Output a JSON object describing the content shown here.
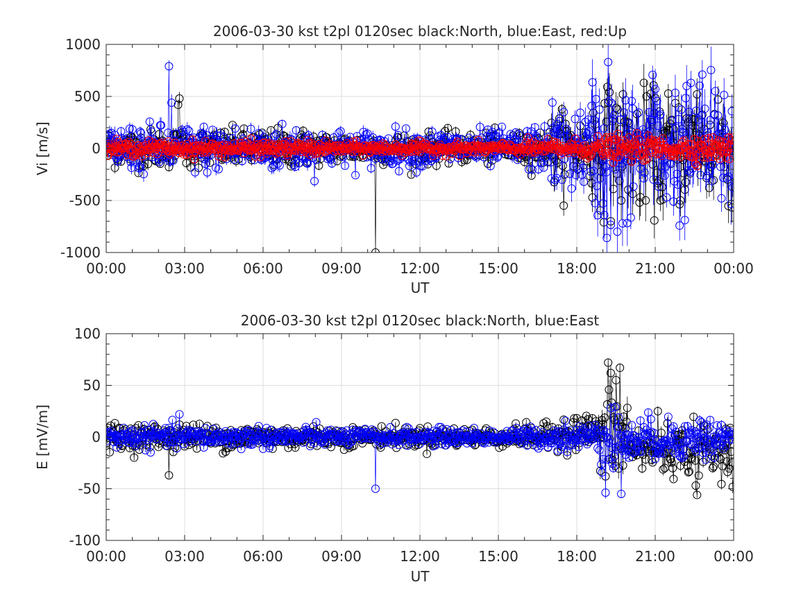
{
  "chart_data": [
    {
      "type": "scatter",
      "title": "2006-03-30 kst t2pl 0120sec black:North, blue:East, red:Up",
      "xlabel": "UT",
      "ylabel": "Vi [m/s]",
      "xlim_hours": [
        0,
        24
      ],
      "ylim": [
        -1000,
        1000
      ],
      "xticks": [
        "00:00",
        "03:00",
        "06:00",
        "09:00",
        "12:00",
        "15:00",
        "18:00",
        "21:00",
        "00:00"
      ],
      "yticks": [
        "-1000",
        "-500",
        "0",
        "500",
        "1000"
      ],
      "grid": true,
      "marker": "circle with error bars",
      "series": [
        {
          "name": "North",
          "color": "#000000",
          "approx_values": {
            "quiet_range": [
              -200,
              200
            ],
            "active_range_after_18UT": [
              -700,
              500
            ],
            "spike_at_10.3UT": -1000
          }
        },
        {
          "name": "East",
          "color": "#0000ff",
          "approx_values": {
            "quiet_range": [
              -300,
              300
            ],
            "peak_2.4UT": 790,
            "peak_19.2UT": 830,
            "min_19.2UT": -860
          }
        },
        {
          "name": "Up",
          "color": "#ff0000",
          "approx_values": {
            "range": [
              -100,
              100
            ]
          }
        }
      ]
    },
    {
      "type": "scatter",
      "title": "2006-03-30 kst t2pl 0120sec black:North, blue:East",
      "xlabel": "UT",
      "ylabel": "E [mV/m]",
      "xlim_hours": [
        0,
        24
      ],
      "ylim": [
        -100,
        100
      ],
      "xticks": [
        "00:00",
        "03:00",
        "06:00",
        "09:00",
        "12:00",
        "15:00",
        "18:00",
        "21:00",
        "00:00"
      ],
      "yticks": [
        "-100",
        "-50",
        "0",
        "50",
        "100"
      ],
      "grid": true,
      "marker": "circle with error bars",
      "series": [
        {
          "name": "North",
          "color": "#000000",
          "approx_values": {
            "quiet_range": [
              -20,
              15
            ],
            "peak_19.2UT": 72,
            "min_2.4UT": -37,
            "min_22.6UT": -56
          }
        },
        {
          "name": "East",
          "color": "#0000ff",
          "approx_values": {
            "quiet_range": [
              -10,
              12
            ],
            "spike_10.3UT": -50,
            "min_19.7UT": -55,
            "peak_2.8UT": 22
          }
        }
      ]
    }
  ]
}
